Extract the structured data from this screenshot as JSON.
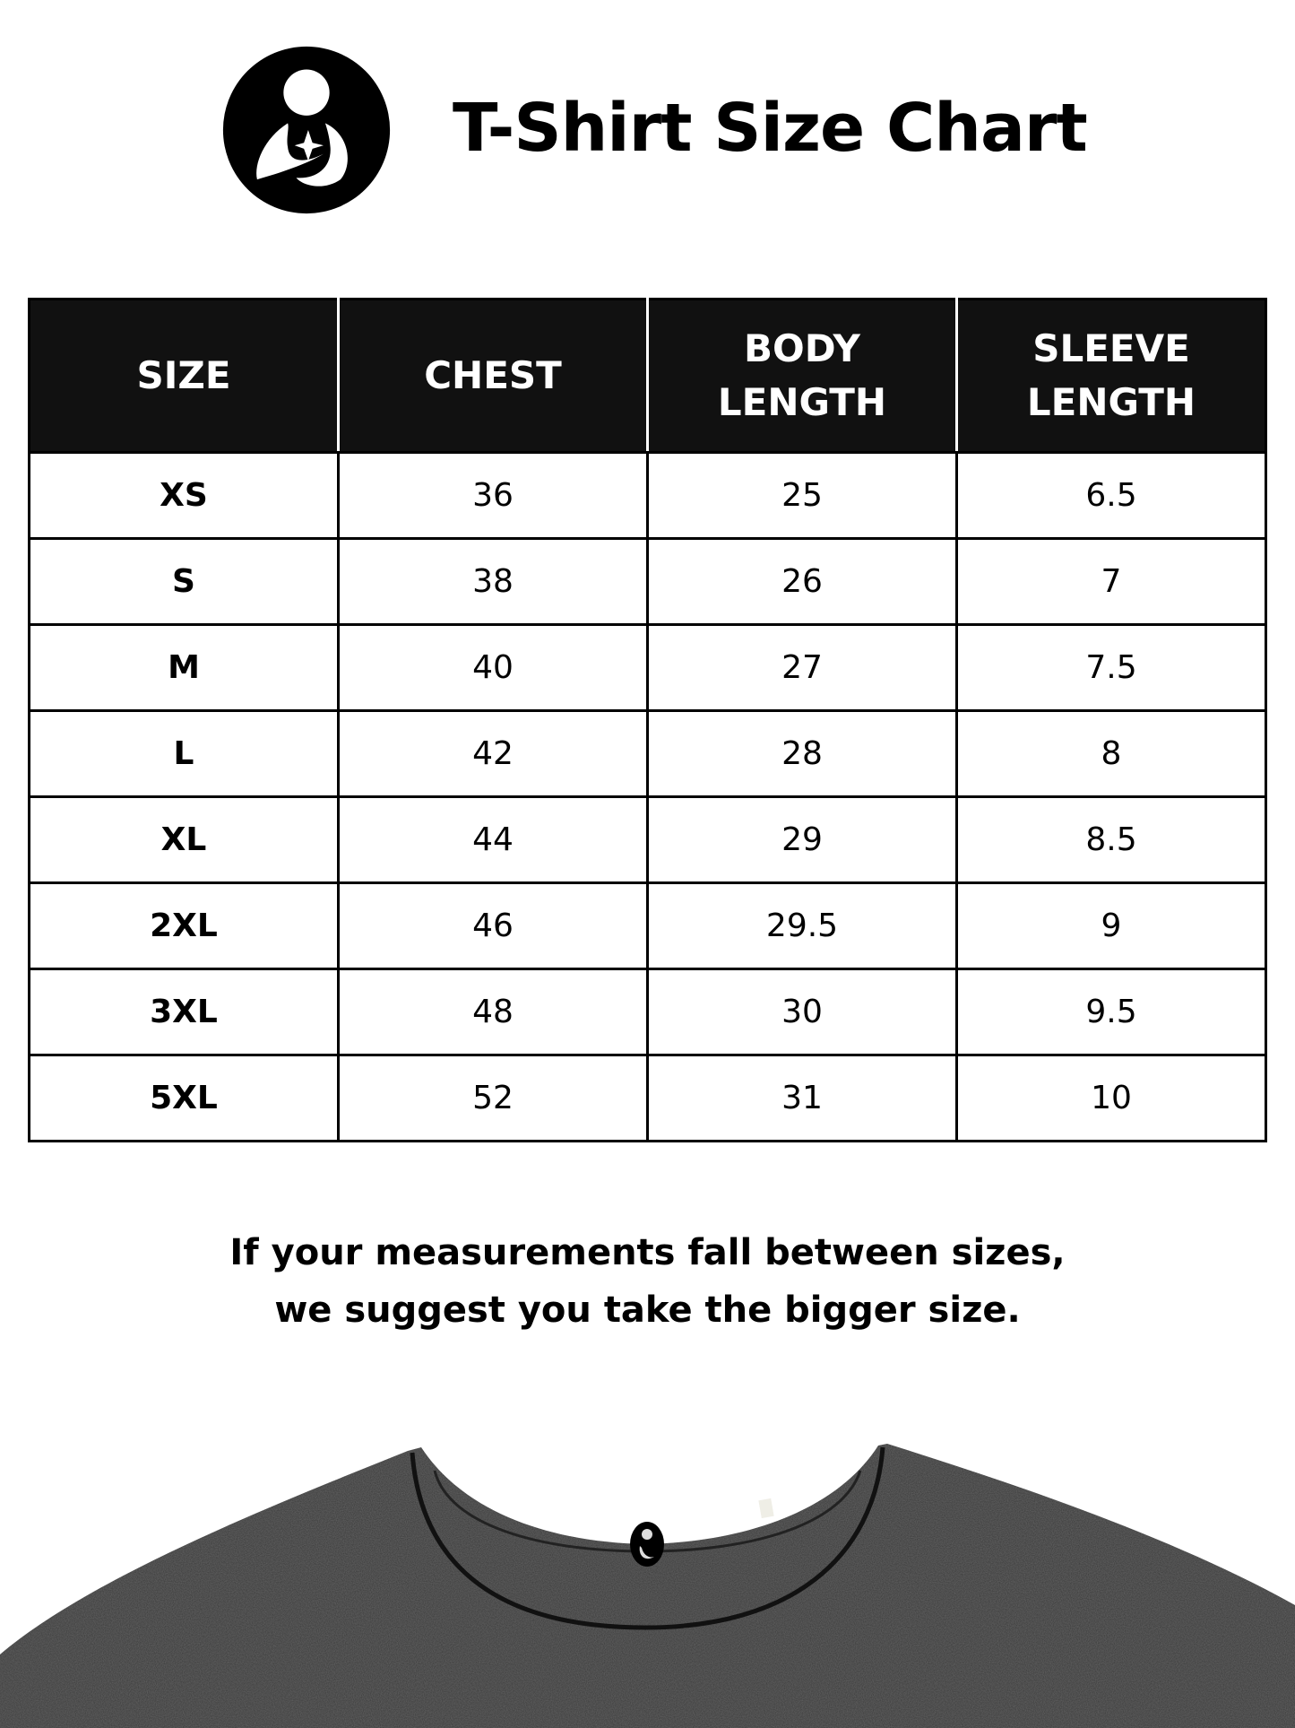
{
  "header": {
    "title": "T-Shirt Size Chart",
    "logo_icon": "mother-and-child-logo-icon"
  },
  "table": {
    "columns": [
      "SIZE",
      "CHEST",
      "BODY\nLENGTH",
      "SLEEVE\nLENGTH"
    ],
    "rows": [
      [
        "XS",
        "36",
        "25",
        "6.5"
      ],
      [
        "S",
        "38",
        "26",
        "7"
      ],
      [
        "M",
        "40",
        "27",
        "7.5"
      ],
      [
        "L",
        "42",
        "28",
        "8"
      ],
      [
        "XL",
        "44",
        "29",
        "8.5"
      ],
      [
        "2XL",
        "46",
        "29.5",
        "9"
      ],
      [
        "3XL",
        "48",
        "30",
        "9.5"
      ],
      [
        "5XL",
        "52",
        "31",
        "10"
      ]
    ]
  },
  "note": {
    "line1": "If your measurements fall between sizes,",
    "line2": "we suggest you take the bigger size."
  },
  "colors": {
    "header_bg": "#111111",
    "shirt": "#3a3a3a"
  }
}
